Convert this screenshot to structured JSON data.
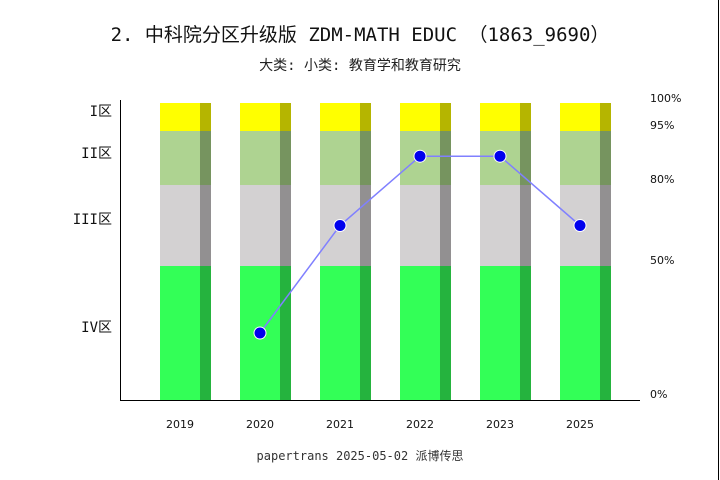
{
  "title": "2. 中科院分区升级版 ZDM-MATH EDUC （1863_9690）",
  "subtitle": "大类:  小类: 教育学和教育研究",
  "footer": "papertrans 2025-05-02 派博传思",
  "colors": {
    "zone1": "#ffff00",
    "zone2": "#aed391",
    "zone3": "#d3d1d2",
    "zone4": "#33ff57",
    "line": "#8080ff",
    "point": "#0000ee"
  },
  "chart_data": {
    "type": "bar+line",
    "categories": [
      "2019",
      "2020",
      "2021",
      "2022",
      "2023",
      "2025"
    ],
    "zone_labels": [
      "I区",
      "II区",
      "III区",
      "IV区"
    ],
    "zone_bounds_percent": [
      [
        95,
        100
      ],
      [
        80,
        95
      ],
      [
        50,
        80
      ],
      [
        0,
        50
      ]
    ],
    "right_ticks": [
      "100%",
      "95%",
      "80%",
      "50%",
      "0%"
    ],
    "right_tick_values": [
      100,
      95,
      80,
      50,
      0
    ],
    "series": [
      {
        "values": [
          null,
          25,
          65,
          88,
          88,
          65
        ]
      }
    ]
  }
}
